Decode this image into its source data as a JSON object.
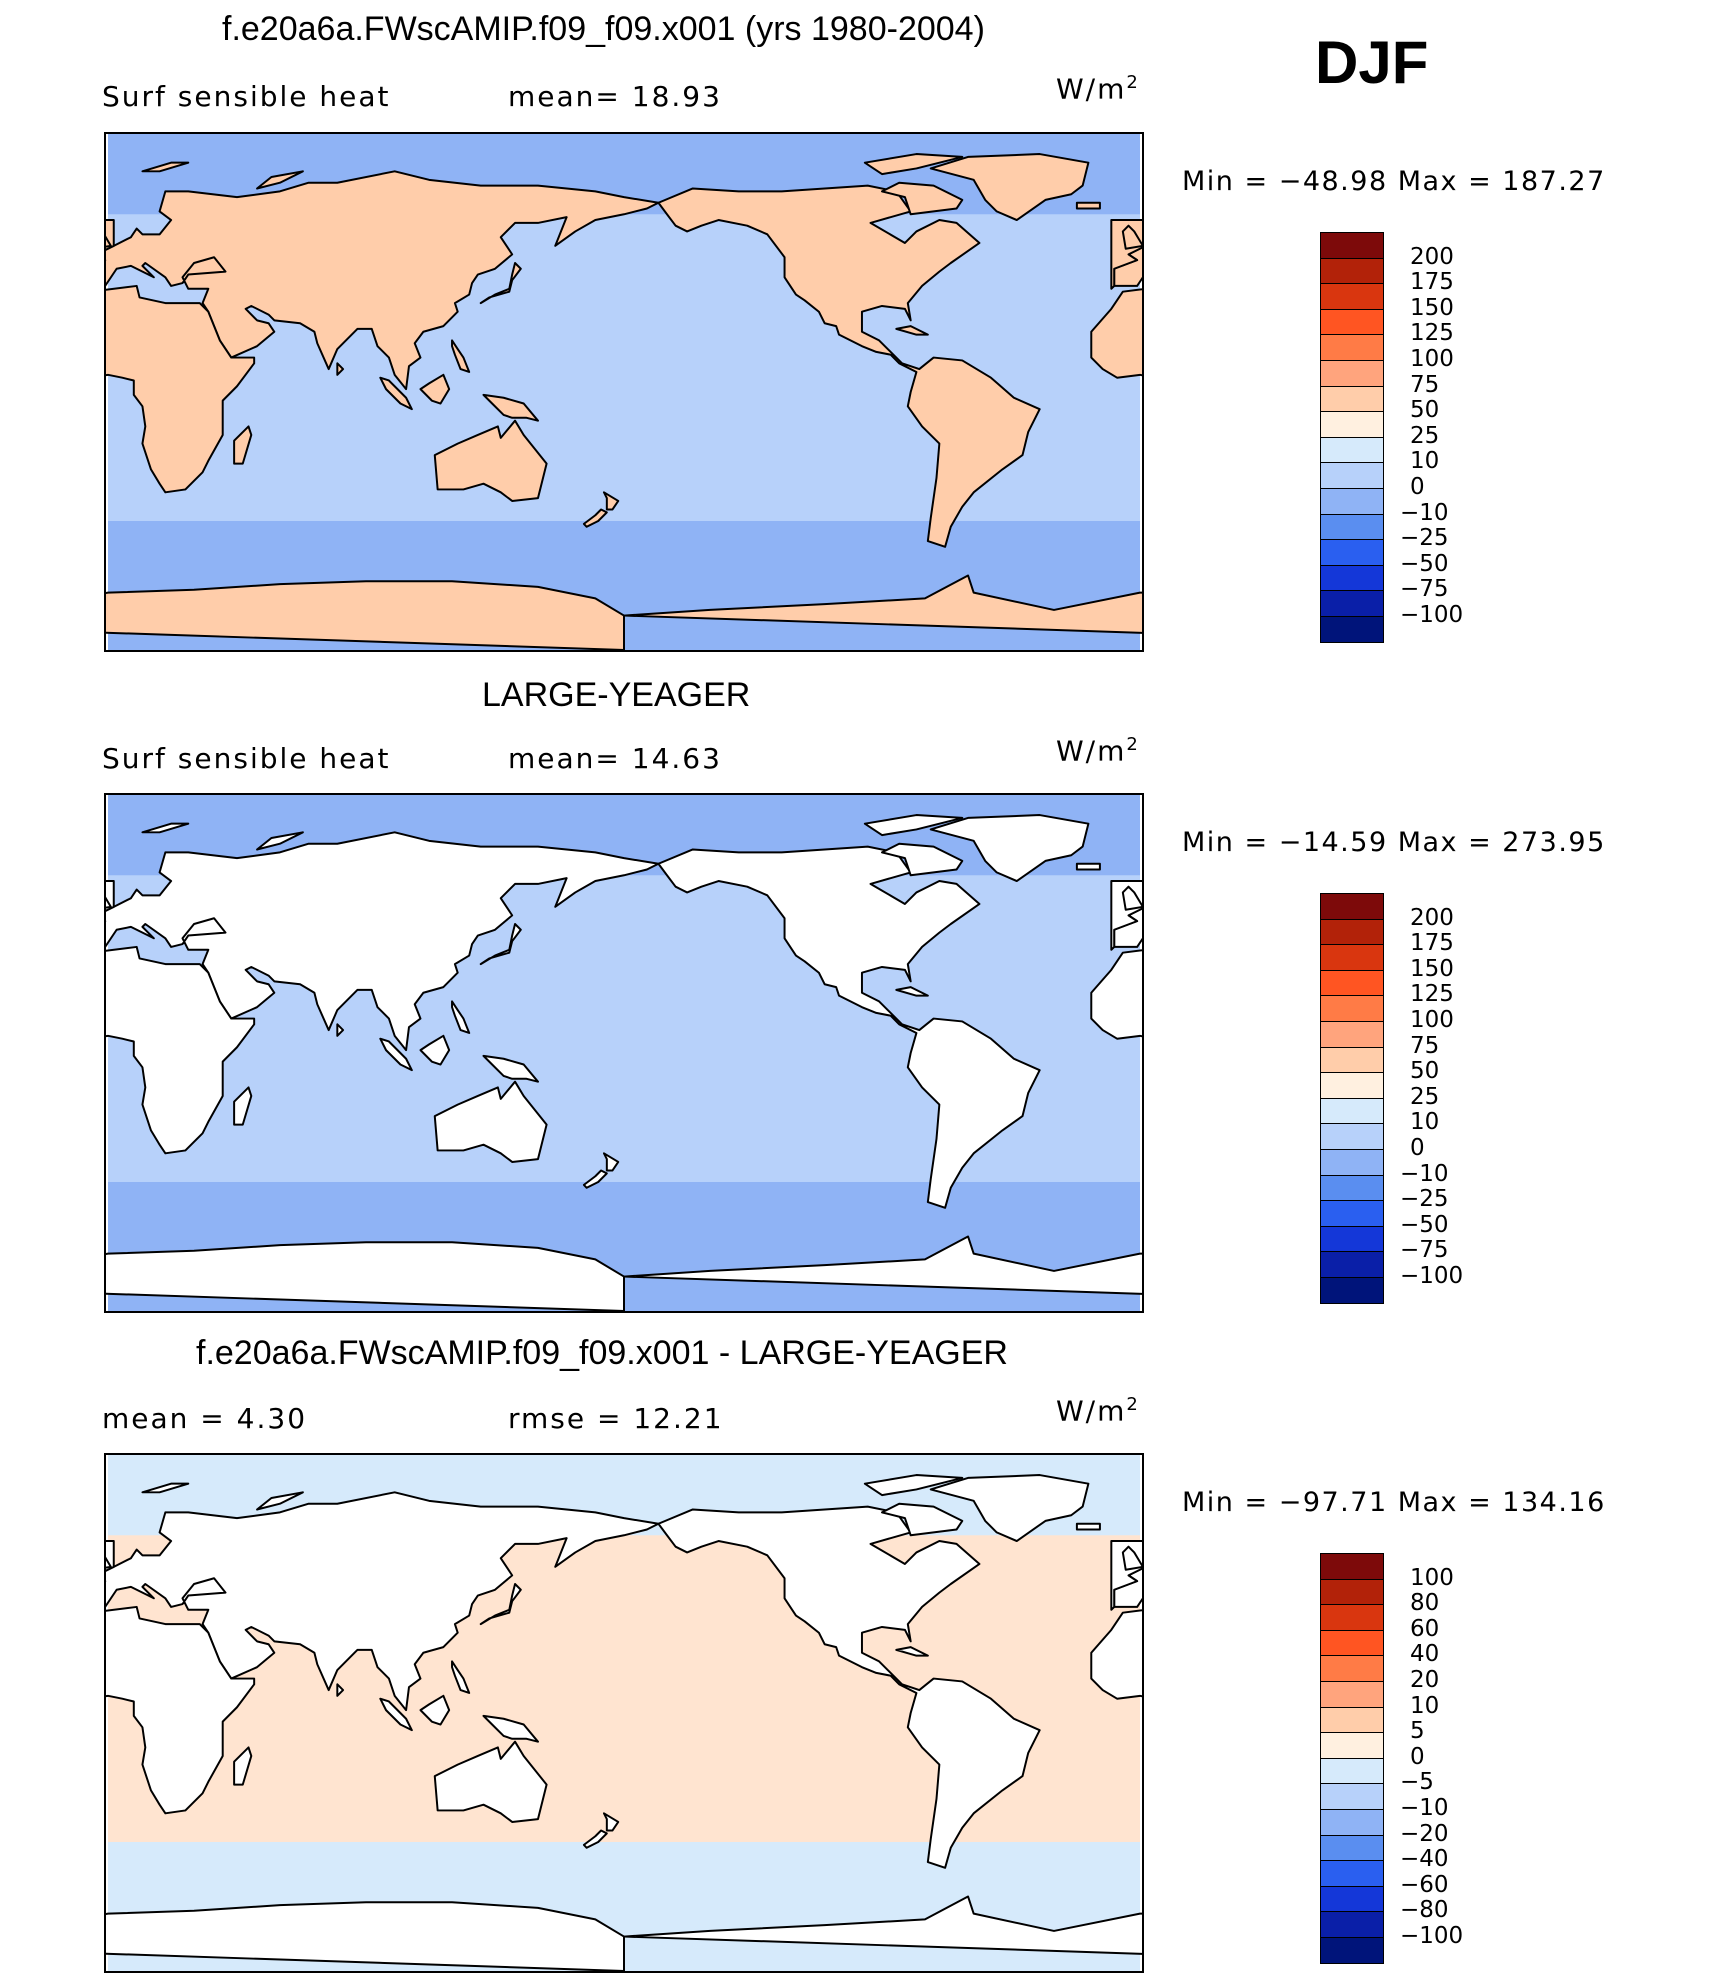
{
  "season": "DJF",
  "panels": [
    {
      "title": "f.e20a6a.FWscAMIP.f09_f09.x001 (yrs 1980-2004)",
      "left_text": "Surf  sensible  heat",
      "mid_text": "mean=   18.93",
      "units": "W/m",
      "units_sup": "2",
      "min_max": "Min  =  −48.98  Max  =  187.27",
      "land_filled": true,
      "colorbar": {
        "labels": [
          "200",
          "175",
          "150",
          "125",
          "100",
          "75",
          "50",
          "25",
          "10",
          "0",
          "−10",
          "−25",
          "−50",
          "−75",
          "−100"
        ],
        "colors": [
          "#7d0a0a",
          "#b22209",
          "#d9360f",
          "#ff5522",
          "#ff7b46",
          "#ffa47d",
          "#ffcdaa",
          "#fff0e0",
          "#d6eafb",
          "#b7d1fa",
          "#8fb3f5",
          "#5a8ef0",
          "#2a5ff0",
          "#1437d8",
          "#0a1fa8",
          "#00147a"
        ]
      },
      "fields": {
        "ocean": "#b7d1fa",
        "land": "#ffcdaa",
        "north": "#8fb3f5",
        "south": "#8fb3f5"
      }
    },
    {
      "title": "LARGE-YEAGER",
      "left_text": "Surf  sensible  heat",
      "mid_text": "mean=   14.63",
      "units": "W/m",
      "units_sup": "2",
      "min_max": "Min  =  −14.59  Max  =  273.95",
      "land_filled": false,
      "colorbar": {
        "labels": [
          "200",
          "175",
          "150",
          "125",
          "100",
          "75",
          "50",
          "25",
          "10",
          "0",
          "−10",
          "−25",
          "−50",
          "−75",
          "−100"
        ],
        "colors": [
          "#7d0a0a",
          "#b22209",
          "#d9360f",
          "#ff5522",
          "#ff7b46",
          "#ffa47d",
          "#ffcdaa",
          "#fff0e0",
          "#d6eafb",
          "#b7d1fa",
          "#8fb3f5",
          "#5a8ef0",
          "#2a5ff0",
          "#1437d8",
          "#0a1fa8",
          "#00147a"
        ]
      },
      "fields": {
        "ocean": "#b7d1fa",
        "land": "#ffffff",
        "north": "#8fb3f5",
        "south": "#8fb3f5"
      }
    },
    {
      "title": "f.e20a6a.FWscAMIP.f09_f09.x001 - LARGE-YEAGER",
      "left_text": "mean  =      4.30",
      "mid_text": "rmse  =     12.21",
      "units": "W/m",
      "units_sup": "2",
      "min_max": "Min  =  −97.71  Max  =  134.16",
      "land_filled": false,
      "colorbar": {
        "labels": [
          "100",
          "80",
          "60",
          "40",
          "20",
          "10",
          "5",
          "0",
          "−5",
          "−10",
          "−20",
          "−40",
          "−60",
          "−80",
          "−100"
        ],
        "colors": [
          "#7d0a0a",
          "#b22209",
          "#d9360f",
          "#ff5522",
          "#ff7b46",
          "#ffa47d",
          "#ffcdaa",
          "#fff0e0",
          "#d6eafb",
          "#b7d1fa",
          "#8fb3f5",
          "#5a8ef0",
          "#2a5ff0",
          "#1437d8",
          "#0a1fa8",
          "#00147a"
        ]
      },
      "fields": {
        "ocean": "#ffe4d0",
        "land": "#ffffff",
        "north": "#d6eafb",
        "south": "#d6eafb"
      }
    }
  ]
}
